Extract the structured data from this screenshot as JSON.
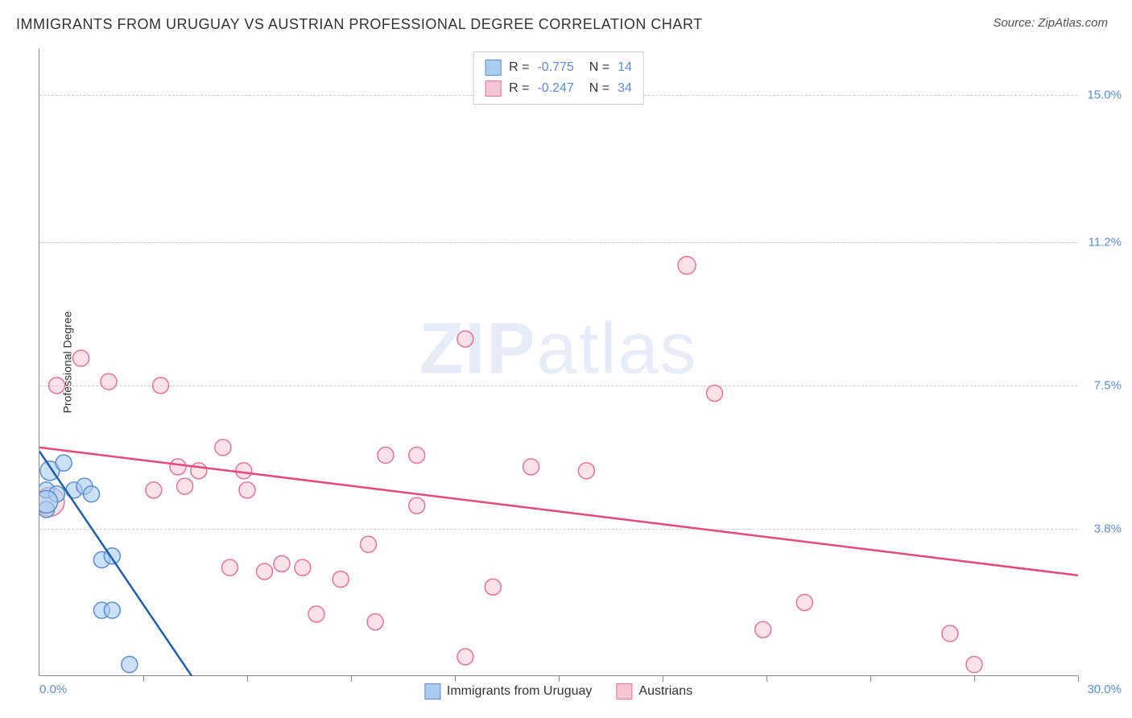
{
  "title": "IMMIGRANTS FROM URUGUAY VS AUSTRIAN PROFESSIONAL DEGREE CORRELATION CHART",
  "source": "Source: ZipAtlas.com",
  "watermark": {
    "zip": "ZIP",
    "atlas": "atlas"
  },
  "chart": {
    "type": "scatter",
    "ylabel": "Professional Degree",
    "background_color": "#ffffff",
    "grid_color": "#cccccc",
    "axis_color": "#888888",
    "xlim": [
      0,
      30
    ],
    "ylim": [
      0,
      16.2
    ],
    "x_start_label": "0.0%",
    "x_end_label": "30.0%",
    "yticks": [
      {
        "value": 3.8,
        "label": "3.8%"
      },
      {
        "value": 7.5,
        "label": "7.5%"
      },
      {
        "value": 11.2,
        "label": "11.2%"
      },
      {
        "value": 15.0,
        "label": "15.0%"
      }
    ],
    "xtick_positions": [
      3,
      6,
      9,
      12,
      15,
      18,
      21,
      24,
      27,
      30
    ],
    "series": [
      {
        "name": "Immigrants from Uruguay",
        "color_fill": "#a8cdf0",
        "color_stroke": "#5b8dd6",
        "line_color": "#1f5fb0",
        "marker_radius": 10,
        "fill_opacity": 0.6,
        "R": "-0.775",
        "N": "14",
        "regression": {
          "x1": 0,
          "y1": 5.8,
          "x2": 4.4,
          "y2": 0
        },
        "points": [
          {
            "x": 0.3,
            "y": 5.3,
            "r": 12
          },
          {
            "x": 0.7,
            "y": 5.5,
            "r": 10
          },
          {
            "x": 0.2,
            "y": 4.8,
            "r": 10
          },
          {
            "x": 0.5,
            "y": 4.7,
            "r": 10
          },
          {
            "x": 1.0,
            "y": 4.8,
            "r": 10
          },
          {
            "x": 1.3,
            "y": 4.9,
            "r": 10
          },
          {
            "x": 1.5,
            "y": 4.7,
            "r": 10
          },
          {
            "x": 0.2,
            "y": 4.3,
            "r": 10
          },
          {
            "x": 1.8,
            "y": 3.0,
            "r": 10
          },
          {
            "x": 2.1,
            "y": 3.1,
            "r": 10
          },
          {
            "x": 1.8,
            "y": 1.7,
            "r": 10
          },
          {
            "x": 2.1,
            "y": 1.7,
            "r": 10
          },
          {
            "x": 2.6,
            "y": 0.3,
            "r": 10
          },
          {
            "x": 0.2,
            "y": 4.5,
            "r": 14
          }
        ]
      },
      {
        "name": "Austrians",
        "color_fill": "#f7c6d4",
        "color_stroke": "#e67399",
        "line_color": "#e64980",
        "marker_radius": 10,
        "fill_opacity": 0.5,
        "R": "-0.247",
        "N": "34",
        "regression": {
          "x1": 0,
          "y1": 5.9,
          "x2": 30,
          "y2": 2.6
        },
        "points": [
          {
            "x": 0.3,
            "y": 4.5,
            "r": 18
          },
          {
            "x": 1.2,
            "y": 8.2,
            "r": 10
          },
          {
            "x": 0.5,
            "y": 7.5,
            "r": 10
          },
          {
            "x": 2.0,
            "y": 7.6,
            "r": 10
          },
          {
            "x": 3.5,
            "y": 7.5,
            "r": 10
          },
          {
            "x": 3.3,
            "y": 4.8,
            "r": 10
          },
          {
            "x": 4.0,
            "y": 5.4,
            "r": 10
          },
          {
            "x": 4.6,
            "y": 5.3,
            "r": 10
          },
          {
            "x": 5.3,
            "y": 5.9,
            "r": 10
          },
          {
            "x": 5.9,
            "y": 5.3,
            "r": 10
          },
          {
            "x": 5.5,
            "y": 2.8,
            "r": 10
          },
          {
            "x": 6.5,
            "y": 2.7,
            "r": 10
          },
          {
            "x": 7.0,
            "y": 2.9,
            "r": 10
          },
          {
            "x": 7.6,
            "y": 2.8,
            "r": 10
          },
          {
            "x": 8.0,
            "y": 1.6,
            "r": 10
          },
          {
            "x": 8.7,
            "y": 2.5,
            "r": 10
          },
          {
            "x": 9.5,
            "y": 3.4,
            "r": 10
          },
          {
            "x": 9.7,
            "y": 1.4,
            "r": 10
          },
          {
            "x": 10.0,
            "y": 5.7,
            "r": 10
          },
          {
            "x": 10.9,
            "y": 5.7,
            "r": 10
          },
          {
            "x": 10.9,
            "y": 4.4,
            "r": 10
          },
          {
            "x": 12.3,
            "y": 0.5,
            "r": 10
          },
          {
            "x": 12.3,
            "y": 8.7,
            "r": 10
          },
          {
            "x": 13.1,
            "y": 2.3,
            "r": 10
          },
          {
            "x": 14.2,
            "y": 5.4,
            "r": 10
          },
          {
            "x": 15.8,
            "y": 5.3,
            "r": 10
          },
          {
            "x": 18.7,
            "y": 10.6,
            "r": 11
          },
          {
            "x": 19.5,
            "y": 7.3,
            "r": 10
          },
          {
            "x": 20.9,
            "y": 1.2,
            "r": 10
          },
          {
            "x": 22.1,
            "y": 1.9,
            "r": 10
          },
          {
            "x": 26.3,
            "y": 1.1,
            "r": 10
          },
          {
            "x": 27.0,
            "y": 0.3,
            "r": 10
          },
          {
            "x": 4.2,
            "y": 4.9,
            "r": 10
          },
          {
            "x": 6.0,
            "y": 4.8,
            "r": 10
          }
        ]
      }
    ]
  }
}
